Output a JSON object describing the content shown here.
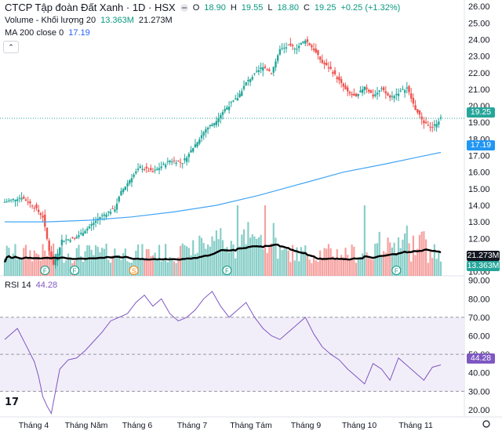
{
  "header": {
    "title": "CTCP Tập đoàn Đất Xanh · 1D · HSX",
    "ohlc": {
      "o_label": "O",
      "o": "18.90",
      "h_label": "H",
      "h": "19.55",
      "l_label": "L",
      "l": "18.80",
      "c_label": "C",
      "c": "19.25",
      "change": "+0.25 (+1.32%)"
    },
    "volume_label": "Volume - Khối lượng 20",
    "volume_value": "13.363M",
    "volume_ma_value": "21.273M",
    "ma_label": "MA 200 close 0",
    "ma_value": "17.19",
    "collapse_glyph": "⌃"
  },
  "badges": {
    "last_price": "19.25",
    "ma": "17.19",
    "volume_ma": "21.273M",
    "volume": "13.363M",
    "rsi": "44.28"
  },
  "rsi_legend": {
    "label": "RSI 14",
    "value": "44.28"
  },
  "logo_text": "17",
  "colors": {
    "up": "#26a69a",
    "down": "#ef5350",
    "ma": "#42a5f5",
    "rsi": "#7e57c2",
    "rsi_band": "#ede7f6",
    "vol_ma": "#000000"
  },
  "chart_data": [
    {
      "type": "candlestick",
      "title": "CTCP Tập đoàn Đất Xanh · 1D · HSX",
      "x_tick_labels": [
        "Tháng 4",
        "Tháng Năm",
        "Tháng 6",
        "Tháng 7",
        "Tháng Tám",
        "Tháng 9",
        "Tháng 10",
        "Tháng 11"
      ],
      "y_ticks": [
        10.0,
        11.0,
        12.0,
        13.0,
        14.0,
        15.0,
        16.0,
        17.0,
        18.0,
        19.0,
        20.0,
        21.0,
        22.0,
        23.0,
        24.0,
        25.0,
        26.0
      ],
      "ylim": [
        9.6,
        26.2
      ],
      "close_path": [
        [
          0,
          14.2
        ],
        [
          8,
          14.5
        ],
        [
          14,
          13.9
        ],
        [
          18,
          13.3
        ],
        [
          21,
          11.3
        ],
        [
          23,
          10.4
        ],
        [
          27,
          11.9
        ],
        [
          33,
          12.0
        ],
        [
          39,
          12.6
        ],
        [
          45,
          13.3
        ],
        [
          52,
          13.8
        ],
        [
          55,
          14.8
        ],
        [
          60,
          15.7
        ],
        [
          64,
          16.3
        ],
        [
          70,
          16.0
        ],
        [
          78,
          16.7
        ],
        [
          84,
          16.6
        ],
        [
          88,
          17.3
        ],
        [
          95,
          18.6
        ],
        [
          99,
          19.0
        ],
        [
          104,
          19.8
        ],
        [
          110,
          20.5
        ],
        [
          114,
          21.4
        ],
        [
          118,
          21.9
        ],
        [
          122,
          22.4
        ],
        [
          126,
          22.0
        ],
        [
          130,
          23.4
        ],
        [
          134,
          23.6
        ],
        [
          138,
          23.5
        ],
        [
          142,
          24.0
        ],
        [
          146,
          23.4
        ],
        [
          150,
          22.6
        ],
        [
          154,
          22.2
        ],
        [
          158,
          21.5
        ],
        [
          162,
          20.8
        ],
        [
          166,
          20.5
        ],
        [
          170,
          21.2
        ],
        [
          174,
          20.6
        ],
        [
          178,
          21.0
        ],
        [
          182,
          20.5
        ],
        [
          186,
          20.8
        ],
        [
          190,
          21.1
        ],
        [
          194,
          19.8
        ],
        [
          198,
          19.0
        ],
        [
          202,
          18.7
        ],
        [
          206,
          19.25
        ]
      ],
      "candle_ranges": {
        "low": 10.0,
        "high": 24.4
      },
      "ma200": {
        "name": "MA 200 close 0",
        "points": [
          [
            0,
            13.0
          ],
          [
            20,
            13.0
          ],
          [
            40,
            13.1
          ],
          [
            60,
            13.3
          ],
          [
            80,
            13.6
          ],
          [
            100,
            14.0
          ],
          [
            120,
            14.6
          ],
          [
            140,
            15.3
          ],
          [
            160,
            16.0
          ],
          [
            180,
            16.5
          ],
          [
            195,
            16.9
          ],
          [
            206,
            17.19
          ]
        ]
      },
      "last_price": 19.25
    },
    {
      "type": "bar",
      "title": "Volume - Khối lượng 20",
      "series": [
        {
          "name": "Khối lượng 20",
          "last": "13.363M"
        }
      ],
      "ma_last": "21.273M"
    },
    {
      "type": "line",
      "title": "RSI 14",
      "y_ticks": [
        20.0,
        30.0,
        40.0,
        50.0,
        60.0,
        70.0,
        80.0,
        90.0
      ],
      "ylim": [
        17,
        92
      ],
      "band": [
        30,
        70
      ],
      "mid": 50,
      "points": [
        [
          0,
          58
        ],
        [
          6,
          64
        ],
        [
          10,
          55
        ],
        [
          14,
          46
        ],
        [
          16,
          38
        ],
        [
          18,
          27
        ],
        [
          20,
          22
        ],
        [
          22,
          18
        ],
        [
          24,
          30
        ],
        [
          26,
          42
        ],
        [
          30,
          47
        ],
        [
          34,
          48
        ],
        [
          38,
          52
        ],
        [
          42,
          57
        ],
        [
          46,
          62
        ],
        [
          50,
          68
        ],
        [
          54,
          70
        ],
        [
          58,
          72
        ],
        [
          62,
          78
        ],
        [
          66,
          82
        ],
        [
          70,
          76
        ],
        [
          74,
          80
        ],
        [
          78,
          72
        ],
        [
          82,
          68
        ],
        [
          86,
          70
        ],
        [
          90,
          74
        ],
        [
          94,
          80
        ],
        [
          98,
          84
        ],
        [
          102,
          76
        ],
        [
          106,
          70
        ],
        [
          110,
          74
        ],
        [
          114,
          78
        ],
        [
          118,
          70
        ],
        [
          122,
          64
        ],
        [
          126,
          60
        ],
        [
          130,
          58
        ],
        [
          134,
          62
        ],
        [
          138,
          66
        ],
        [
          142,
          70
        ],
        [
          146,
          61
        ],
        [
          150,
          54
        ],
        [
          154,
          50
        ],
        [
          158,
          47
        ],
        [
          162,
          42
        ],
        [
          166,
          38
        ],
        [
          170,
          34
        ],
        [
          174,
          45
        ],
        [
          178,
          42
        ],
        [
          182,
          36
        ],
        [
          186,
          48
        ],
        [
          190,
          44
        ],
        [
          194,
          40
        ],
        [
          198,
          36
        ],
        [
          202,
          43
        ],
        [
          206,
          44.28
        ]
      ],
      "last": 44.28
    }
  ]
}
